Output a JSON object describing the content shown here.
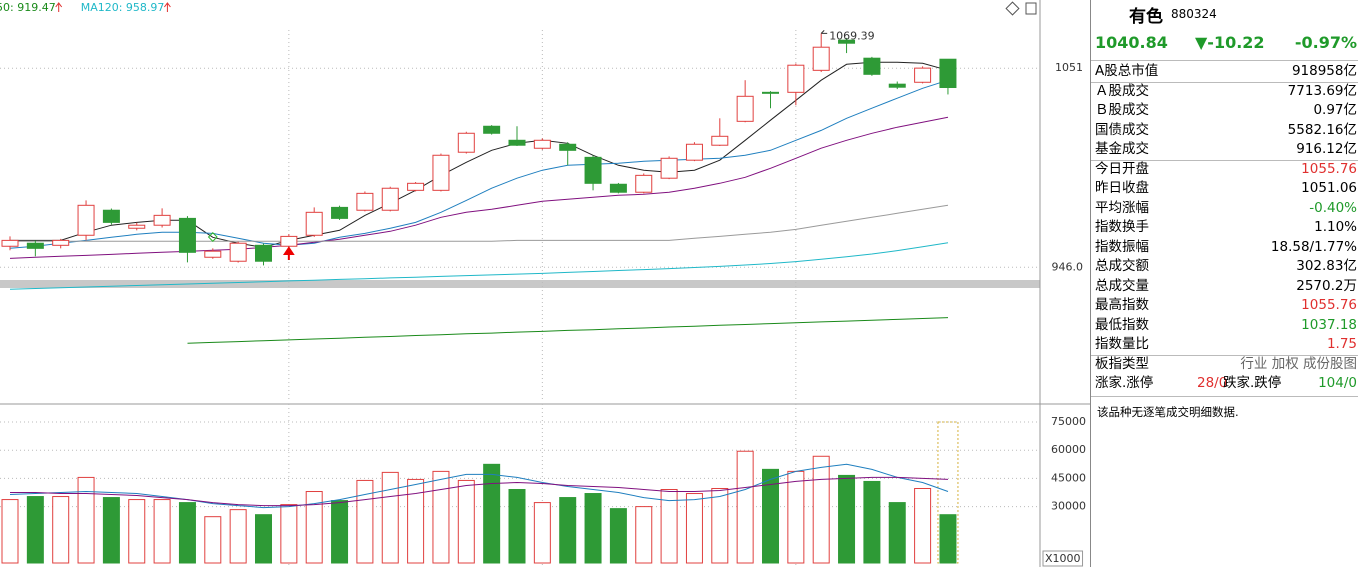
{
  "chart_data": [
    {
      "type": "candlestick",
      "ylim": [
        876,
        1087
      ],
      "yticks": [
        {
          "value": 946,
          "label": "946.0"
        },
        1051
      ],
      "legend": [
        "50: 919.47",
        "MA120: 958.97"
      ],
      "high_label": "1069.39",
      "up_color": "#e0403f",
      "down_color": "#2e9a36",
      "candles": [
        [
          957.1,
          962.3,
          955.0,
          960.2
        ],
        [
          958.7,
          960.2,
          951.8,
          956.0
        ],
        [
          957.6,
          961,
          956,
          960.2
        ],
        [
          962.9,
          981.3,
          960.2,
          978.7
        ],
        [
          976.1,
          977,
          968.5,
          969.7
        ],
        [
          966.6,
          969.5,
          965.5,
          968.2
        ],
        [
          968.2,
          977.1,
          967,
          973.4
        ],
        [
          971.8,
          973,
          948.6,
          953.9
        ],
        [
          951.3,
          956,
          950.5,
          954.5
        ],
        [
          949.2,
          959.5,
          948.5,
          958.7
        ],
        [
          957.6,
          958.5,
          947.0,
          949.2
        ],
        [
          957.1,
          963.5,
          956,
          962.3
        ],
        [
          962.9,
          977.6,
          962,
          975.0
        ],
        [
          977.6,
          978.5,
          971,
          971.8
        ],
        [
          976.1,
          986,
          975.5,
          985.0
        ],
        [
          976.1,
          988.5,
          975.5,
          987.7
        ],
        [
          986.6,
          991,
          986,
          990.3
        ],
        [
          986.6,
          1006,
          986,
          1005.1
        ],
        [
          1006.7,
          1017.5,
          1006,
          1016.7
        ],
        [
          1020.4,
          1021,
          1016,
          1016.7
        ],
        [
          1013.0,
          1020.4,
          1010,
          1010.4
        ],
        [
          1008.8,
          1014,
          1008,
          1013.0
        ],
        [
          1010.9,
          1012,
          999.8,
          1007.7
        ],
        [
          1004.0,
          1005,
          986.6,
          990.3
        ],
        [
          989.8,
          990.5,
          985,
          985.6
        ],
        [
          985.6,
          995.5,
          985,
          994.5
        ],
        [
          993.0,
          1004.5,
          992.5,
          1003.5
        ],
        [
          1002.5,
          1012,
          1002,
          1010.9
        ],
        [
          1010.4,
          1024.6,
          1010,
          1015.1
        ],
        [
          1023.0,
          1044.7,
          1022.5,
          1036.2
        ],
        [
          1038.3,
          1038.9,
          1029.9,
          1037.8
        ],
        [
          1038.3,
          1053.5,
          1031.5,
          1052.6
        ],
        [
          1049.9,
          1069.39,
          1049,
          1062.1
        ],
        [
          1065.8,
          1067,
          1059,
          1064.2
        ],
        [
          1056.3,
          1057,
          1047,
          1047.8
        ],
        [
          1042.6,
          1044,
          1040,
          1041.0
        ],
        [
          1043.6,
          1052,
          1043,
          1051.06
        ],
        [
          1055.76,
          1055.76,
          1037.18,
          1040.84
        ]
      ],
      "series": [
        {
          "color": "#222222",
          "values": [
            960.2,
            960.2,
            960.2,
            964.5,
            968.2,
            969.7,
            970.8,
            970.8,
            961.8,
            958.7,
            956.5,
            960.2,
            962.9,
            965.5,
            973.4,
            979.8,
            986.6,
            994.5,
            1001.4,
            1007.7,
            1011.4,
            1013.0,
            1011.4,
            1005.1,
            999.8,
            997.2,
            996.1,
            997.2,
            1002.5,
            1013.0,
            1023.6,
            1034.1,
            1044.7,
            1053.1,
            1054.2,
            1054.2,
            1053.6,
            1049.9
          ]
        },
        {
          "color": "#1f7fbf",
          "values": [
            956.0,
            957.1,
            958.7,
            960.2,
            961.8,
            963.4,
            964.5,
            964.5,
            963.9,
            961.3,
            958.7,
            957.6,
            958.7,
            961.8,
            963.9,
            966.6,
            969.7,
            975.0,
            981.3,
            987.7,
            993.0,
            997.2,
            999.8,
            1000.4,
            1000.9,
            1001.9,
            1002.5,
            1003.0,
            1003.5,
            1005.1,
            1007.7,
            1013.0,
            1018.2,
            1024.6,
            1029.9,
            1035.2,
            1040.4,
            1044.7
          ]
        },
        {
          "color": "#80107f",
          "values": [
            950.7,
            951.3,
            951.8,
            952.3,
            952.8,
            953.4,
            953.9,
            954.4,
            955.0,
            955.5,
            956.5,
            957.6,
            959.2,
            960.8,
            962.9,
            965.0,
            968.2,
            972.4,
            975.0,
            976.6,
            978.7,
            980.8,
            981.9,
            982.9,
            984.0,
            984.5,
            985.6,
            987.7,
            990.3,
            993.5,
            998.2,
            1003.5,
            1008.8,
            1013.0,
            1016.7,
            1019.9,
            1022.5,
            1025.1
          ]
        },
        {
          "color": "#9a9a9a",
          "values": [
            959.7,
            959.7,
            959.7,
            959.7,
            959.7,
            959.7,
            959.7,
            959.7,
            959.7,
            959.7,
            959.7,
            959.7,
            959.7,
            959.7,
            959.7,
            959.7,
            959.7,
            959.7,
            959.7,
            959.7,
            960.2,
            960.2,
            960.2,
            960.2,
            960.2,
            960.2,
            960.2,
            961.3,
            962.3,
            963.4,
            964.5,
            966.0,
            968.2,
            970.3,
            972.4,
            974.5,
            976.6,
            978.7
          ]
        },
        {
          "color": "#20b8c8",
          "values": [
            934.4,
            934.8,
            935.2,
            935.6,
            936.0,
            936.4,
            936.8,
            937.2,
            937.6,
            938.0,
            938.4,
            938.8,
            939.2,
            939.6,
            940.0,
            940.4,
            940.8,
            941.2,
            941.6,
            942.0,
            942.4,
            942.8,
            943.3,
            943.8,
            944.3,
            944.8,
            945.3,
            945.9,
            946.5,
            947.2,
            948.0,
            949.0,
            950.2,
            951.6,
            953.0,
            954.8,
            956.8,
            958.97
          ]
        },
        {
          "color": "#1a8a1a",
          "values": [
            null,
            null,
            null,
            null,
            null,
            null,
            null,
            905.9,
            906.4,
            906.8,
            907.3,
            907.7,
            908.2,
            908.6,
            909.1,
            909.5,
            910.0,
            910.4,
            910.9,
            911.3,
            911.8,
            912.2,
            912.7,
            913.1,
            913.6,
            914.0,
            914.5,
            914.9,
            915.4,
            915.8,
            916.3,
            916.7,
            917.2,
            917.6,
            918.1,
            918.5,
            919.0,
            919.47
          ]
        }
      ]
    },
    {
      "type": "bar",
      "ylim": [
        0,
        84600
      ],
      "yticks": [
        30000,
        45000,
        60000,
        75000
      ],
      "unit_label": "X1000",
      "projected": 75000,
      "values": [
        33750,
        35357,
        35357,
        45536,
        34821,
        33750,
        33750,
        32143,
        24643,
        28393,
        25714,
        31071,
        38036,
        33214,
        43929,
        48214,
        44464,
        48750,
        43929,
        52500,
        39107,
        32143,
        34821,
        36964,
        28929,
        30000,
        39107,
        36964,
        39643,
        59464,
        49821,
        48750,
        56786,
        46607,
        43393,
        32143,
        39643,
        25702
      ],
      "series": [
        {
          "color": "#1f7fbf",
          "values": [
            36429,
            36964,
            37500,
            38036,
            37500,
            36964,
            35357,
            33750,
            31607,
            30536,
            29464,
            30000,
            31607,
            33750,
            36429,
            39107,
            41786,
            44464,
            47143,
            47143,
            45536,
            42857,
            40714,
            39107,
            37500,
            34821,
            33214,
            33750,
            35357,
            39107,
            44464,
            48750,
            50893,
            52500,
            49821,
            45536,
            42857,
            38036
          ]
        },
        {
          "color": "#80107f",
          "values": [
            37500,
            37500,
            36964,
            36964,
            36429,
            35893,
            34821,
            33750,
            32143,
            31071,
            30536,
            30536,
            31071,
            32143,
            33750,
            35357,
            36964,
            39107,
            41250,
            42321,
            42857,
            42321,
            41250,
            40714,
            40179,
            39107,
            38036,
            38036,
            38571,
            40179,
            41786,
            43393,
            44464,
            45000,
            45536,
            45536,
            45000,
            44464
          ]
        }
      ]
    }
  ],
  "panel": {
    "name": "有色",
    "code": "880324",
    "price": "1040.84",
    "change": "▼-10.22",
    "change_pct": "-0.97%",
    "rows": [
      {
        "label": "A股总市值",
        "value": "918958亿"
      },
      {
        "label": "Ａ股成交",
        "value": "7713.69亿"
      },
      {
        "label": "Ｂ股成交",
        "value": "0.97亿"
      },
      {
        "label": "国债成交",
        "value": "5582.16亿"
      },
      {
        "label": "基金成交",
        "value": "916.12亿"
      },
      {
        "label": "今日开盘",
        "value": "1055.76",
        "color": "red"
      },
      {
        "label": "昨日收盘",
        "value": "1051.06"
      },
      {
        "label": "平均涨幅",
        "value": "-0.40%",
        "color": "green"
      },
      {
        "label": "指数换手",
        "value": "1.10%"
      },
      {
        "label": "指数振幅",
        "value": "18.58/1.77%"
      },
      {
        "label": "总成交额",
        "value": "302.83亿"
      },
      {
        "label": "总成交量",
        "value": "2570.2万"
      },
      {
        "label": "最高指数",
        "value": "1055.76",
        "color": "red"
      },
      {
        "label": "最低指数",
        "value": "1037.18",
        "color": "green"
      },
      {
        "label": "指数量比",
        "value": "1.75",
        "color": "red"
      },
      {
        "label": "板指类型",
        "value": "行业 加权 成份股图",
        "color": "gray"
      }
    ],
    "breadth": {
      "up_label": "涨家.涨停",
      "up": "28/0",
      "down_label": "跌家.跌停",
      "down": "104/0"
    },
    "note": "该品种无逐笔成交明细数据."
  }
}
